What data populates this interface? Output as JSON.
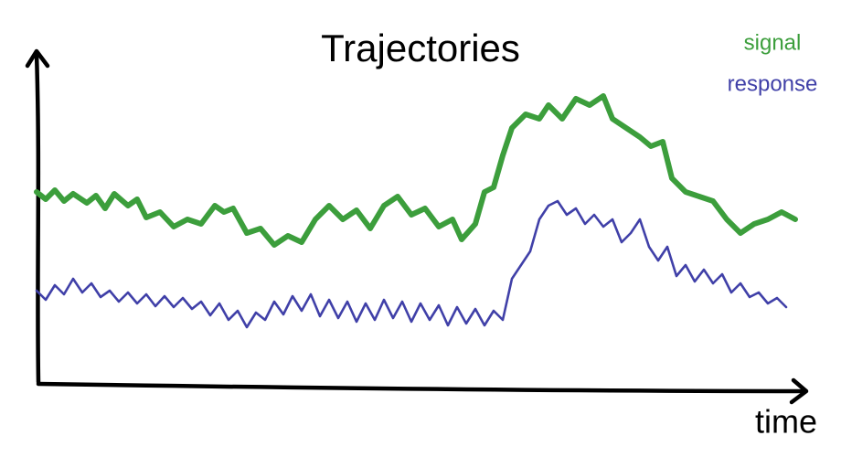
{
  "chart_data": {
    "type": "line",
    "title": "Trajectories",
    "x_label": "time",
    "legend": "upper right",
    "xlim": [
      0,
      840
    ],
    "ylim": [
      0,
      360
    ],
    "series": [
      {
        "name": "signal",
        "color": "#3c9e3c",
        "x": [
          0,
          10,
          20,
          30,
          40,
          55,
          65,
          75,
          85,
          100,
          110,
          120,
          135,
          150,
          165,
          180,
          195,
          205,
          215,
          230,
          245,
          260,
          275,
          290,
          305,
          320,
          335,
          350,
          365,
          380,
          395,
          410,
          425,
          440,
          455,
          465,
          480,
          490,
          500,
          510,
          520,
          535,
          550,
          560,
          575,
          590,
          605,
          620,
          630,
          645,
          660,
          672,
          685,
          695,
          710,
          725,
          740,
          755,
          770,
          785,
          800,
          815,
          830
        ],
        "values": [
          210,
          202,
          212,
          200,
          208,
          198,
          206,
          192,
          208,
          195,
          202,
          182,
          188,
          172,
          180,
          175,
          195,
          188,
          192,
          165,
          170,
          152,
          162,
          155,
          180,
          195,
          180,
          190,
          170,
          195,
          205,
          185,
          192,
          172,
          180,
          158,
          175,
          210,
          215,
          250,
          280,
          295,
          290,
          305,
          290,
          312,
          305,
          315,
          290,
          280,
          270,
          260,
          265,
          225,
          210,
          205,
          200,
          180,
          165,
          175,
          180,
          188,
          180
        ]
      },
      {
        "name": "response",
        "color": "#4040a8",
        "x": [
          0,
          10,
          20,
          30,
          40,
          50,
          60,
          70,
          80,
          90,
          100,
          110,
          120,
          130,
          140,
          150,
          160,
          170,
          180,
          190,
          200,
          210,
          220,
          230,
          240,
          250,
          260,
          270,
          280,
          290,
          300,
          310,
          320,
          330,
          340,
          350,
          360,
          370,
          380,
          390,
          400,
          410,
          420,
          430,
          440,
          450,
          460,
          470,
          480,
          490,
          500,
          510,
          520,
          530,
          540,
          550,
          560,
          570,
          580,
          590,
          600,
          610,
          620,
          630,
          640,
          650,
          660,
          670,
          680,
          690,
          700,
          710,
          720,
          730,
          740,
          750,
          760,
          770,
          780,
          790,
          800,
          810,
          820
        ],
        "values": [
          102,
          92,
          108,
          98,
          115,
          100,
          110,
          95,
          102,
          90,
          100,
          88,
          98,
          85,
          96,
          84,
          94,
          82,
          90,
          75,
          88,
          70,
          80,
          62,
          78,
          70,
          90,
          76,
          96,
          80,
          98,
          74,
          92,
          72,
          90,
          68,
          88,
          70,
          92,
          72,
          90,
          68,
          88,
          70,
          86,
          64,
          84,
          66,
          82,
          64,
          80,
          70,
          115,
          130,
          145,
          180,
          195,
          200,
          185,
          192,
          175,
          185,
          172,
          180,
          155,
          165,
          180,
          150,
          135,
          150,
          118,
          130,
          112,
          125,
          110,
          120,
          100,
          110,
          95,
          100,
          88,
          94,
          84
        ]
      }
    ]
  }
}
